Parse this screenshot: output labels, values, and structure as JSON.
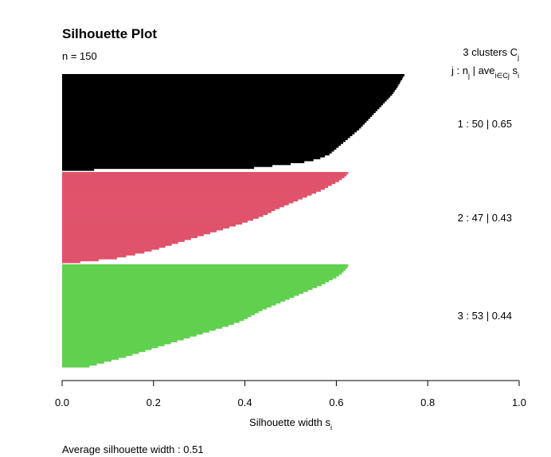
{
  "chart_data": {
    "type": "bar",
    "orientation": "horizontal",
    "title": "Silhouette Plot",
    "subtitle": "n = 150",
    "xlabel_main": "Silhouette width s",
    "xlabel_sub": "i",
    "xlim": [
      0,
      1
    ],
    "xticks": [
      "0.0",
      "0.2",
      "0.4",
      "0.6",
      "0.8",
      "1.0"
    ],
    "header": {
      "line1_main": "3  clusters  C",
      "line1_sub": "j",
      "line2_prefix": "j :  n",
      "line2_sub_j": "j",
      "line2_mid": " | ave",
      "line2_sub_ave": "i∈Cj",
      "line2_suffix": "  s",
      "line2_sub_i": "i"
    },
    "footer": "Average silhouette width :  0.51",
    "clusters": [
      {
        "label": "1 :   50  |  0.65",
        "n": 50,
        "avg": 0.65,
        "color": "#000000",
        "widths": [
          0.749,
          0.746,
          0.744,
          0.741,
          0.739,
          0.736,
          0.734,
          0.731,
          0.728,
          0.725,
          0.722,
          0.718,
          0.714,
          0.71,
          0.706,
          0.702,
          0.698,
          0.694,
          0.69,
          0.686,
          0.682,
          0.678,
          0.674,
          0.67,
          0.666,
          0.662,
          0.658,
          0.654,
          0.65,
          0.645,
          0.64,
          0.635,
          0.63,
          0.625,
          0.62,
          0.615,
          0.61,
          0.605,
          0.6,
          0.595,
          0.59,
          0.585,
          0.575,
          0.565,
          0.55,
          0.53,
          0.5,
          0.46,
          0.42,
          0.07
        ]
      },
      {
        "label": "2 :   47  |  0.43",
        "n": 47,
        "avg": 0.43,
        "color": "#DF536B",
        "widths": [
          0.626,
          0.622,
          0.618,
          0.612,
          0.606,
          0.598,
          0.59,
          0.582,
          0.575,
          0.566,
          0.556,
          0.546,
          0.536,
          0.526,
          0.516,
          0.506,
          0.496,
          0.486,
          0.476,
          0.466,
          0.458,
          0.45,
          0.44,
          0.43,
          0.418,
          0.406,
          0.394,
          0.38,
          0.366,
          0.352,
          0.338,
          0.324,
          0.31,
          0.296,
          0.282,
          0.268,
          0.254,
          0.24,
          0.226,
          0.212,
          0.196,
          0.18,
          0.16,
          0.14,
          0.12,
          0.08,
          0.04
        ]
      },
      {
        "label": "3 :   53  |  0.44",
        "n": 53,
        "avg": 0.44,
        "color": "#61D04F",
        "widths": [
          0.626,
          0.624,
          0.62,
          0.616,
          0.612,
          0.606,
          0.6,
          0.592,
          0.584,
          0.576,
          0.568,
          0.558,
          0.548,
          0.538,
          0.528,
          0.518,
          0.508,
          0.498,
          0.488,
          0.478,
          0.468,
          0.458,
          0.448,
          0.438,
          0.43,
          0.422,
          0.414,
          0.406,
          0.398,
          0.388,
          0.376,
          0.364,
          0.35,
          0.336,
          0.322,
          0.308,
          0.294,
          0.28,
          0.266,
          0.252,
          0.238,
          0.224,
          0.21,
          0.196,
          0.182,
          0.168,
          0.154,
          0.14,
          0.124,
          0.108,
          0.092,
          0.076,
          0.06
        ]
      }
    ]
  }
}
